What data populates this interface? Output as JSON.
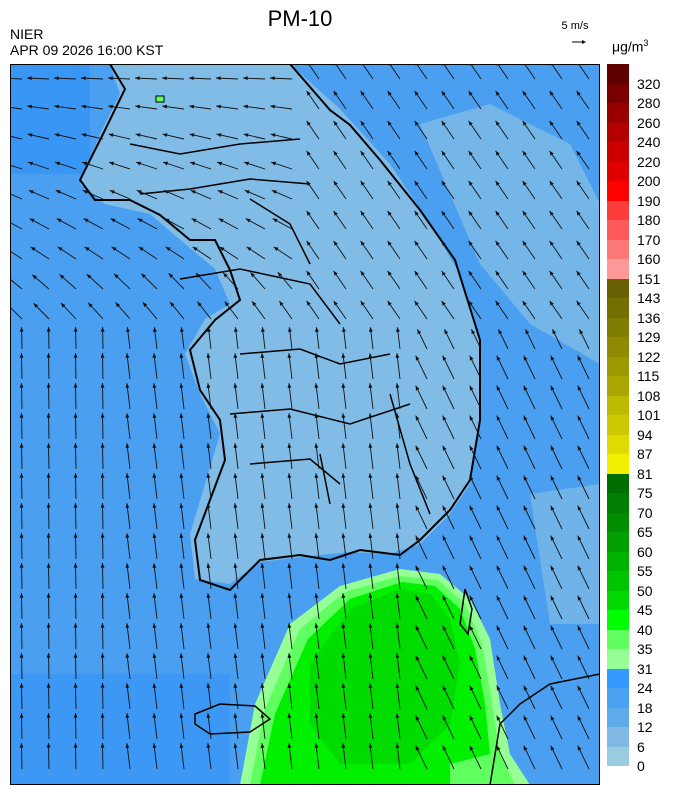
{
  "header": {
    "title": "PM-10",
    "organization": "NIER",
    "timestamp": "APR 09 2026 16:00 KST",
    "wind_reference": "5 m/s",
    "unit": "μg/m",
    "unit_exponent": "3"
  },
  "map": {
    "variable": "PM-10 concentration with wind vectors",
    "background_color": "#4a9ff0",
    "colors": {
      "land_low": "#80bce6",
      "sea_mid": "#5aa8ee",
      "sea_high": "#3399ff",
      "green_high": "#00dc00",
      "green_mid": "#00f000",
      "green_low": "#5eff5e",
      "outline": "#000000"
    }
  },
  "legend": {
    "labels": [
      "320",
      "280",
      "260",
      "240",
      "220",
      "200",
      "190",
      "180",
      "170",
      "160",
      "151",
      "143",
      "136",
      "129",
      "122",
      "115",
      "108",
      "101",
      "94",
      "87",
      "81",
      "75",
      "70",
      "65",
      "60",
      "55",
      "50",
      "45",
      "40",
      "35",
      "31",
      "24",
      "18",
      "12",
      "6",
      "0"
    ],
    "colors": [
      "#5e0000",
      "#7a0000",
      "#9a0000",
      "#b40000",
      "#cc0000",
      "#e00000",
      "#ff0000",
      "#ff3c3c",
      "#ff5a5a",
      "#ff7878",
      "#ff9898",
      "#666000",
      "#737000",
      "#807d00",
      "#8e8b00",
      "#9c9900",
      "#aaa800",
      "#bdbb00",
      "#cec800",
      "#e0da00",
      "#f2ee00",
      "#006e00",
      "#007e00",
      "#008e00",
      "#00a000",
      "#00b200",
      "#00c400",
      "#00d800",
      "#00ff00",
      "#5eff5e",
      "#96ff96",
      "#3399ff",
      "#4aa2f2",
      "#5eaaea",
      "#7fb9e4",
      "#99cce0"
    ]
  }
}
